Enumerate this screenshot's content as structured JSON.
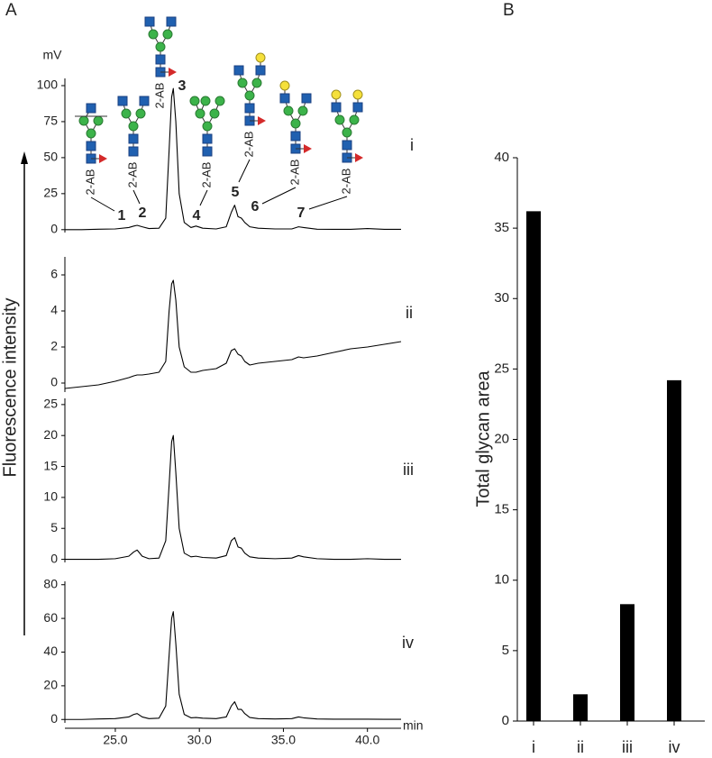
{
  "figure": {
    "panel_labels": [
      "A",
      "B"
    ],
    "ylabel": "Fluorescence intensity"
  },
  "chart_data": [
    {
      "type": "line",
      "label": "i",
      "ylabel": "mV",
      "color": "#000000",
      "xlim": [
        22,
        42
      ],
      "ylim": [
        -2,
        105
      ],
      "yticks": [
        0,
        25,
        50,
        75,
        100
      ],
      "x": [
        22,
        23,
        24,
        25,
        25.8,
        26.1,
        26.3,
        26.6,
        27,
        27.6,
        28.0,
        28.2,
        28.35,
        28.45,
        28.6,
        28.8,
        29.1,
        29.5,
        29.8,
        30.2,
        31,
        31.6,
        31.9,
        32.1,
        32.3,
        32.5,
        32.7,
        33.0,
        33.5,
        34.5,
        35.5,
        35.9,
        36.2,
        37,
        38,
        39,
        40,
        41,
        42
      ],
      "values": [
        0,
        0,
        0.3,
        0.5,
        1.5,
        2.5,
        3,
        2,
        0.8,
        1,
        8,
        55,
        92,
        98,
        75,
        25,
        5,
        1.5,
        2.5,
        1,
        0.5,
        2,
        12,
        17,
        9,
        8,
        5,
        2,
        1,
        0.5,
        0.5,
        2,
        1.5,
        0.3,
        0.2,
        0.2,
        0.8,
        0.2,
        0.2
      ],
      "peaks": [
        {
          "label": "1",
          "tag": "2-AB"
        },
        {
          "label": "2",
          "tag": "2-AB"
        },
        {
          "label": "3",
          "tag": "2-AB"
        },
        {
          "label": "4",
          "tag": "2-AB"
        },
        {
          "label": "5",
          "tag": "2-AB"
        },
        {
          "label": "6",
          "tag": "2-AB"
        },
        {
          "label": "7",
          "tag": "2-AB"
        }
      ]
    },
    {
      "type": "line",
      "label": "ii",
      "color": "#000000",
      "xlim": [
        22,
        42
      ],
      "ylim": [
        -0.5,
        7
      ],
      "yticks": [
        0,
        2,
        4,
        6
      ],
      "x": [
        22,
        23,
        24,
        25,
        25.8,
        26.1,
        26.3,
        26.6,
        27,
        27.6,
        28.0,
        28.2,
        28.35,
        28.45,
        28.6,
        28.8,
        29.1,
        29.5,
        29.8,
        30.2,
        31,
        31.6,
        31.9,
        32.1,
        32.3,
        32.5,
        32.7,
        33.0,
        33.5,
        34.5,
        35.5,
        35.9,
        36.2,
        37,
        38,
        39,
        40,
        41,
        42
      ],
      "values": [
        -0.3,
        -0.2,
        -0.1,
        0.1,
        0.3,
        0.4,
        0.45,
        0.45,
        0.5,
        0.6,
        1.2,
        4,
        5.5,
        5.7,
        4.6,
        2,
        0.9,
        0.6,
        0.6,
        0.7,
        0.8,
        1.1,
        1.8,
        1.9,
        1.6,
        1.5,
        1.2,
        1.0,
        1.1,
        1.2,
        1.3,
        1.45,
        1.4,
        1.5,
        1.7,
        1.9,
        2.0,
        2.15,
        2.3
      ]
    },
    {
      "type": "line",
      "label": "iii",
      "color": "#000000",
      "xlim": [
        22,
        42
      ],
      "ylim": [
        -0.5,
        26
      ],
      "yticks": [
        0,
        5,
        10,
        15,
        20,
        25
      ],
      "x": [
        22,
        23,
        24,
        25,
        25.8,
        26.1,
        26.3,
        26.6,
        27,
        27.6,
        28.0,
        28.2,
        28.35,
        28.45,
        28.6,
        28.8,
        29.1,
        29.5,
        29.8,
        30.2,
        31,
        31.6,
        31.9,
        32.1,
        32.3,
        32.5,
        32.7,
        33.0,
        33.5,
        34.5,
        35.5,
        35.9,
        36.2,
        37,
        38,
        39,
        40,
        41,
        42
      ],
      "values": [
        0,
        0,
        0,
        0.1,
        0.5,
        1.2,
        1.5,
        0.5,
        0.1,
        0.2,
        3,
        12,
        19,
        20,
        14,
        5,
        1,
        0.4,
        0.5,
        0.3,
        0.2,
        0.6,
        3,
        3.5,
        2,
        1.8,
        1,
        0.4,
        0.2,
        0.1,
        0.2,
        0.6,
        0.4,
        0.1,
        0,
        0,
        0.1,
        0,
        0
      ]
    },
    {
      "type": "line",
      "label": "iv",
      "color": "#000000",
      "xlim": [
        22,
        42
      ],
      "ylim": [
        -2,
        82
      ],
      "yticks": [
        0,
        20,
        40,
        60,
        80
      ],
      "xticks": [
        {
          "value": 25,
          "label": "25.0"
        },
        {
          "value": 30,
          "label": "30.0"
        },
        {
          "value": 35,
          "label": "35.0"
        },
        {
          "value": 40,
          "label": "40.0"
        }
      ],
      "xlabel": "min",
      "x": [
        22,
        23,
        24,
        25,
        25.8,
        26.1,
        26.3,
        26.6,
        27,
        27.6,
        28.0,
        28.2,
        28.35,
        28.45,
        28.6,
        28.8,
        29.1,
        29.5,
        29.8,
        30.2,
        31,
        31.6,
        31.9,
        32.1,
        32.3,
        32.5,
        32.7,
        33.0,
        33.5,
        34.5,
        35.5,
        35.9,
        36.2,
        37,
        38,
        39,
        40,
        41,
        42
      ],
      "values": [
        0,
        0,
        0.3,
        0.5,
        1.5,
        3,
        3.5,
        1.5,
        0.5,
        0.8,
        8,
        38,
        60,
        64,
        45,
        15,
        3,
        1,
        1.2,
        0.8,
        0.5,
        1.5,
        8,
        10.5,
        6,
        6,
        3.5,
        1.2,
        0.5,
        0.3,
        0.5,
        1.5,
        1,
        0.3,
        0.2,
        0.2,
        0.2,
        0.1,
        0.1
      ]
    },
    {
      "type": "bar",
      "ylabel": "Total glycan area",
      "color": "#000000",
      "categories": [
        "i",
        "ii",
        "iii",
        "iv"
      ],
      "values": [
        36.2,
        1.9,
        8.3,
        24.2
      ],
      "ylim": [
        0,
        40
      ],
      "yticks": [
        0,
        5,
        10,
        15,
        20,
        25,
        30,
        35,
        40
      ]
    }
  ]
}
